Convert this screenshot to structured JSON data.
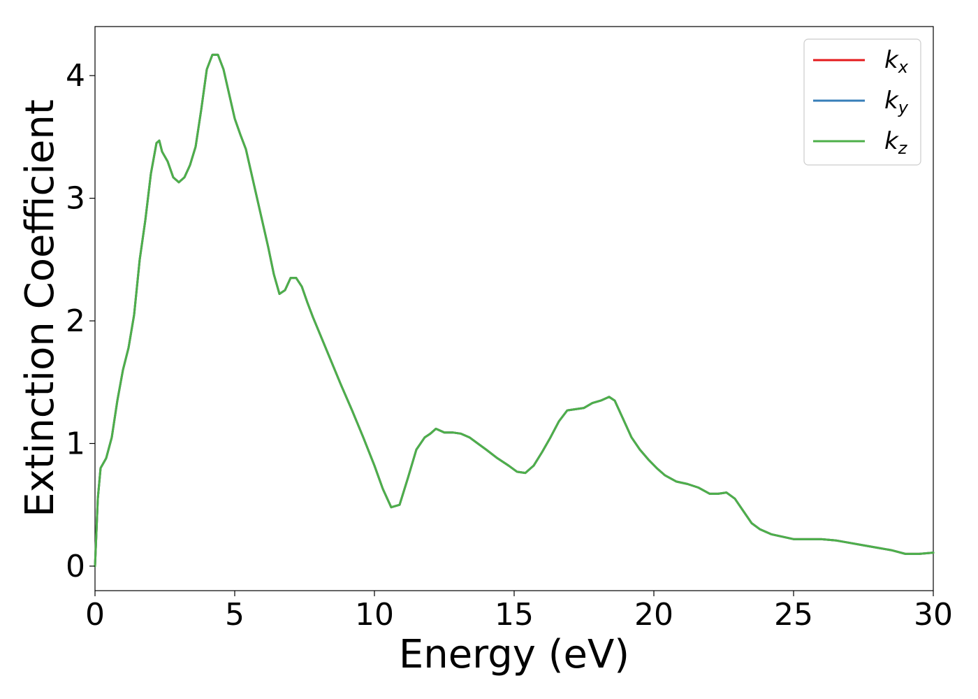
{
  "chart_data": {
    "type": "line",
    "xlabel": "Energy (eV)",
    "ylabel": "Extinction Coefficient",
    "xlim": [
      0,
      30
    ],
    "ylim": [
      -0.2,
      4.4
    ],
    "xticks": [
      0,
      5,
      10,
      15,
      20,
      25,
      30
    ],
    "yticks": [
      0,
      1,
      2,
      3,
      4
    ],
    "grid": false,
    "legend_position": "top-right",
    "x": [
      0,
      0.1,
      0.2,
      0.4,
      0.6,
      0.8,
      1.0,
      1.2,
      1.4,
      1.6,
      1.8,
      2.0,
      2.2,
      2.3,
      2.4,
      2.6,
      2.8,
      3.0,
      3.2,
      3.4,
      3.6,
      3.8,
      4.0,
      4.2,
      4.4,
      4.6,
      4.8,
      5.0,
      5.2,
      5.4,
      5.6,
      5.8,
      6.0,
      6.2,
      6.4,
      6.6,
      6.8,
      7.0,
      7.2,
      7.4,
      7.6,
      7.8,
      8.0,
      8.4,
      8.8,
      9.2,
      9.6,
      10.0,
      10.3,
      10.6,
      10.9,
      11.2,
      11.5,
      11.8,
      12.0,
      12.2,
      12.5,
      12.8,
      13.1,
      13.4,
      13.7,
      14.0,
      14.4,
      14.8,
      15.1,
      15.4,
      15.7,
      16.0,
      16.3,
      16.6,
      16.9,
      17.2,
      17.5,
      17.8,
      18.1,
      18.4,
      18.6,
      18.9,
      19.2,
      19.5,
      19.8,
      20.1,
      20.4,
      20.8,
      21.2,
      21.6,
      22.0,
      22.3,
      22.6,
      22.9,
      23.2,
      23.5,
      23.8,
      24.2,
      24.6,
      25.0,
      25.5,
      26.0,
      26.5,
      27.0,
      27.5,
      28.0,
      28.5,
      29.0,
      29.5,
      30.0
    ],
    "series": [
      {
        "name": "k_x",
        "color": "#e41a1c",
        "values": [
          0,
          0.55,
          0.8,
          0.88,
          1.05,
          1.35,
          1.6,
          1.78,
          2.05,
          2.5,
          2.82,
          3.2,
          3.45,
          3.47,
          3.38,
          3.3,
          3.17,
          3.13,
          3.17,
          3.27,
          3.42,
          3.72,
          4.05,
          4.17,
          4.17,
          4.05,
          3.85,
          3.65,
          3.52,
          3.4,
          3.2,
          3.0,
          2.8,
          2.6,
          2.38,
          2.22,
          2.25,
          2.35,
          2.35,
          2.28,
          2.15,
          2.03,
          1.92,
          1.7,
          1.48,
          1.27,
          1.05,
          0.82,
          0.63,
          0.48,
          0.5,
          0.72,
          0.95,
          1.05,
          1.08,
          1.12,
          1.09,
          1.09,
          1.08,
          1.05,
          1.0,
          0.95,
          0.88,
          0.82,
          0.77,
          0.76,
          0.82,
          0.93,
          1.05,
          1.18,
          1.27,
          1.28,
          1.29,
          1.33,
          1.35,
          1.38,
          1.35,
          1.2,
          1.05,
          0.95,
          0.87,
          0.8,
          0.74,
          0.69,
          0.67,
          0.64,
          0.59,
          0.59,
          0.6,
          0.55,
          0.45,
          0.35,
          0.3,
          0.26,
          0.24,
          0.22,
          0.22,
          0.22,
          0.21,
          0.19,
          0.17,
          0.15,
          0.13,
          0.1,
          0.1,
          0.11
        ]
      },
      {
        "name": "k_y",
        "color": "#377eb8",
        "values": [
          0,
          0.55,
          0.8,
          0.88,
          1.05,
          1.35,
          1.6,
          1.78,
          2.05,
          2.5,
          2.82,
          3.2,
          3.45,
          3.47,
          3.38,
          3.3,
          3.17,
          3.13,
          3.17,
          3.27,
          3.42,
          3.72,
          4.05,
          4.17,
          4.17,
          4.05,
          3.85,
          3.65,
          3.52,
          3.4,
          3.2,
          3.0,
          2.8,
          2.6,
          2.38,
          2.22,
          2.25,
          2.35,
          2.35,
          2.28,
          2.15,
          2.03,
          1.92,
          1.7,
          1.48,
          1.27,
          1.05,
          0.82,
          0.63,
          0.48,
          0.5,
          0.72,
          0.95,
          1.05,
          1.08,
          1.12,
          1.09,
          1.09,
          1.08,
          1.05,
          1.0,
          0.95,
          0.88,
          0.82,
          0.77,
          0.76,
          0.82,
          0.93,
          1.05,
          1.18,
          1.27,
          1.28,
          1.29,
          1.33,
          1.35,
          1.38,
          1.35,
          1.2,
          1.05,
          0.95,
          0.87,
          0.8,
          0.74,
          0.69,
          0.67,
          0.64,
          0.59,
          0.59,
          0.6,
          0.55,
          0.45,
          0.35,
          0.3,
          0.26,
          0.24,
          0.22,
          0.22,
          0.22,
          0.21,
          0.19,
          0.17,
          0.15,
          0.13,
          0.1,
          0.1,
          0.11
        ]
      },
      {
        "name": "k_z",
        "color": "#4daf4a",
        "values": [
          0,
          0.55,
          0.8,
          0.88,
          1.05,
          1.35,
          1.6,
          1.78,
          2.05,
          2.5,
          2.82,
          3.2,
          3.45,
          3.47,
          3.38,
          3.3,
          3.17,
          3.13,
          3.17,
          3.27,
          3.42,
          3.72,
          4.05,
          4.17,
          4.17,
          4.05,
          3.85,
          3.65,
          3.52,
          3.4,
          3.2,
          3.0,
          2.8,
          2.6,
          2.38,
          2.22,
          2.25,
          2.35,
          2.35,
          2.28,
          2.15,
          2.03,
          1.92,
          1.7,
          1.48,
          1.27,
          1.05,
          0.82,
          0.63,
          0.48,
          0.5,
          0.72,
          0.95,
          1.05,
          1.08,
          1.12,
          1.09,
          1.09,
          1.08,
          1.05,
          1.0,
          0.95,
          0.88,
          0.82,
          0.77,
          0.76,
          0.82,
          0.93,
          1.05,
          1.18,
          1.27,
          1.28,
          1.29,
          1.33,
          1.35,
          1.38,
          1.35,
          1.2,
          1.05,
          0.95,
          0.87,
          0.8,
          0.74,
          0.69,
          0.67,
          0.64,
          0.59,
          0.59,
          0.6,
          0.55,
          0.45,
          0.35,
          0.3,
          0.26,
          0.24,
          0.22,
          0.22,
          0.22,
          0.21,
          0.19,
          0.17,
          0.15,
          0.13,
          0.1,
          0.1,
          0.11
        ]
      }
    ],
    "legend": [
      {
        "base": "k",
        "sub": "x",
        "color": "#e41a1c"
      },
      {
        "base": "k",
        "sub": "y",
        "color": "#377eb8"
      },
      {
        "base": "k",
        "sub": "z",
        "color": "#4daf4a"
      }
    ]
  }
}
